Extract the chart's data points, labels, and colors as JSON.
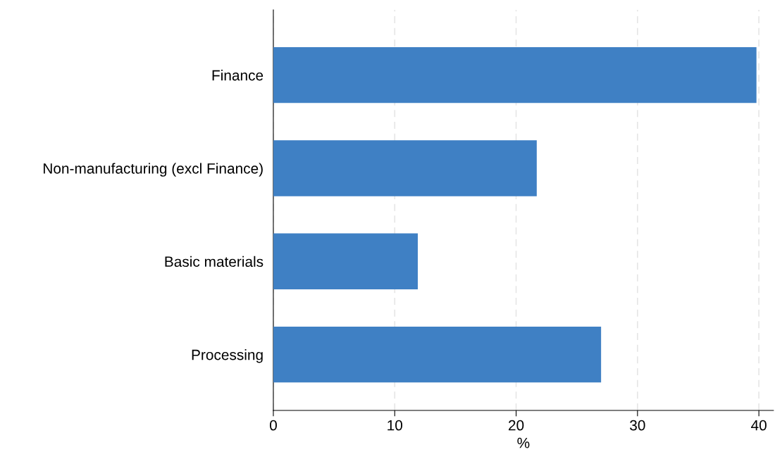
{
  "chart_data": {
    "type": "bar",
    "orientation": "horizontal",
    "xlabel": "%",
    "categories": [
      "Finance",
      "Non-manufacturing (excl Finance)",
      "Basic materials",
      "Processing"
    ],
    "values": [
      39.8,
      21.7,
      11.9,
      27.0
    ],
    "color": "#3f80c4",
    "xlim": [
      0,
      41.2
    ],
    "xticks": [
      0,
      10,
      20,
      30,
      40
    ],
    "grid": "x"
  }
}
